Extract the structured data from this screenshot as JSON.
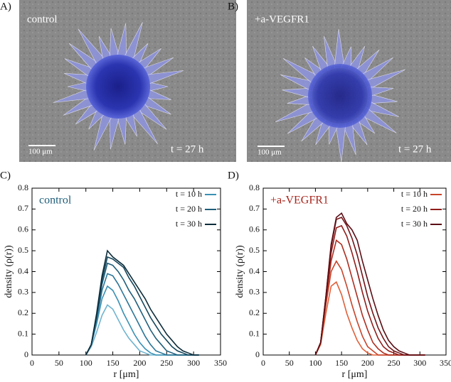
{
  "panels": [
    {
      "label": "A)",
      "caption": "control",
      "time": "t = 27 h",
      "scale": "100 μm"
    },
    {
      "label": "B)",
      "caption": "+a-VEGFR1",
      "time": "t = 27 h",
      "scale": "100 μm"
    },
    {
      "label": "C)"
    },
    {
      "label": "D)"
    }
  ],
  "chart_data": [
    {
      "type": "line",
      "title": "control",
      "title_color": "#1f5e7a",
      "xlabel": "r [μm]",
      "ylabel": "density (ρ(r))",
      "xlim": [
        0,
        350
      ],
      "xticks": [
        0,
        50,
        100,
        150,
        200,
        250,
        300,
        350
      ],
      "ylim": [
        0,
        0.8
      ],
      "yticks": [
        0,
        0.1,
        0.2,
        0.3,
        0.4,
        0.5,
        0.6,
        0.7,
        0.8
      ],
      "legend": "upper right",
      "x": [
        100,
        110,
        120,
        130,
        140,
        150,
        160,
        170,
        180,
        190,
        200,
        210,
        220,
        230,
        240,
        250,
        260,
        270,
        280,
        290,
        300,
        310
      ],
      "series": [
        {
          "color": "#6fb3cf",
          "values": [
            0,
            0.04,
            0.11,
            0.19,
            0.24,
            0.22,
            0.17,
            0.12,
            0.08,
            0.05,
            0.02,
            0.01,
            0,
            0,
            0,
            0,
            0,
            0,
            0,
            0,
            0,
            0
          ]
        },
        {
          "name": "t = 10 h",
          "color": "#3a90b3",
          "values": [
            0,
            0.05,
            0.15,
            0.27,
            0.33,
            0.31,
            0.26,
            0.2,
            0.15,
            0.1,
            0.06,
            0.03,
            0.01,
            0,
            0,
            0,
            0,
            0,
            0,
            0,
            0,
            0
          ]
        },
        {
          "color": "#2a7597",
          "values": [
            0,
            0.05,
            0.17,
            0.31,
            0.39,
            0.38,
            0.34,
            0.29,
            0.24,
            0.19,
            0.14,
            0.09,
            0.05,
            0.02,
            0.01,
            0,
            0,
            0,
            0,
            0,
            0,
            0
          ]
        },
        {
          "name": "t = 20 h",
          "color": "#1f5e7a",
          "values": [
            0,
            0.05,
            0.18,
            0.34,
            0.44,
            0.43,
            0.4,
            0.36,
            0.31,
            0.27,
            0.22,
            0.17,
            0.12,
            0.08,
            0.05,
            0.02,
            0.01,
            0,
            0,
            0,
            0,
            0
          ]
        },
        {
          "color": "#16475c",
          "values": [
            0,
            0.05,
            0.19,
            0.36,
            0.47,
            0.46,
            0.44,
            0.42,
            0.37,
            0.33,
            0.28,
            0.23,
            0.18,
            0.14,
            0.1,
            0.07,
            0.04,
            0.02,
            0.01,
            0,
            0,
            0
          ]
        },
        {
          "name": "t = 30 h",
          "color": "#0d2c3a",
          "values": [
            0,
            0.05,
            0.2,
            0.38,
            0.5,
            0.47,
            0.45,
            0.43,
            0.39,
            0.35,
            0.31,
            0.27,
            0.22,
            0.18,
            0.14,
            0.1,
            0.07,
            0.04,
            0.02,
            0.01,
            0,
            0
          ]
        }
      ]
    },
    {
      "type": "line",
      "title": "+a-VEGFR1",
      "title_color": "#a8251c",
      "xlabel": "r [μm]",
      "ylabel": "density (ρ(r))",
      "xlim": [
        0,
        350
      ],
      "xticks": [
        0,
        50,
        100,
        150,
        200,
        250,
        300,
        350
      ],
      "ylim": [
        0,
        0.8
      ],
      "yticks": [
        0,
        0.1,
        0.2,
        0.3,
        0.4,
        0.5,
        0.6,
        0.7,
        0.8
      ],
      "legend": "upper right",
      "x": [
        100,
        110,
        120,
        130,
        140,
        150,
        160,
        170,
        180,
        190,
        200,
        210,
        220,
        230,
        240,
        250,
        260,
        270,
        280,
        290,
        300,
        310
      ],
      "series": [
        {
          "color": "#e0603a",
          "values": [
            0,
            0.05,
            0.2,
            0.33,
            0.35,
            0.29,
            0.2,
            0.13,
            0.07,
            0.03,
            0.01,
            0,
            0,
            0,
            0,
            0,
            0,
            0,
            0,
            0,
            0,
            0
          ]
        },
        {
          "name": "t = 10 h",
          "color": "#c8442a",
          "values": [
            0,
            0.06,
            0.24,
            0.4,
            0.45,
            0.41,
            0.33,
            0.24,
            0.16,
            0.09,
            0.04,
            0.02,
            0,
            0,
            0,
            0,
            0,
            0,
            0,
            0,
            0,
            0
          ]
        },
        {
          "color": "#ad2e20",
          "values": [
            0,
            0.06,
            0.26,
            0.45,
            0.55,
            0.53,
            0.46,
            0.37,
            0.28,
            0.19,
            0.12,
            0.06,
            0.03,
            0.01,
            0,
            0,
            0,
            0,
            0,
            0,
            0,
            0
          ]
        },
        {
          "name": "t = 20 h",
          "color": "#8f1d1a",
          "values": [
            0,
            0.06,
            0.27,
            0.49,
            0.61,
            0.62,
            0.57,
            0.49,
            0.4,
            0.3,
            0.21,
            0.14,
            0.08,
            0.04,
            0.02,
            0.01,
            0,
            0,
            0,
            0,
            0,
            0
          ]
        },
        {
          "color": "#731418",
          "values": [
            0,
            0.06,
            0.28,
            0.52,
            0.65,
            0.66,
            0.62,
            0.56,
            0.48,
            0.38,
            0.28,
            0.2,
            0.13,
            0.08,
            0.04,
            0.02,
            0.01,
            0,
            0,
            0,
            0,
            0
          ]
        },
        {
          "name": "t = 30 h",
          "color": "#5a0e15",
          "values": [
            0,
            0.06,
            0.28,
            0.53,
            0.66,
            0.68,
            0.63,
            0.6,
            0.55,
            0.45,
            0.36,
            0.27,
            0.19,
            0.12,
            0.07,
            0.04,
            0.02,
            0.01,
            0,
            0,
            0,
            0
          ]
        }
      ]
    }
  ]
}
